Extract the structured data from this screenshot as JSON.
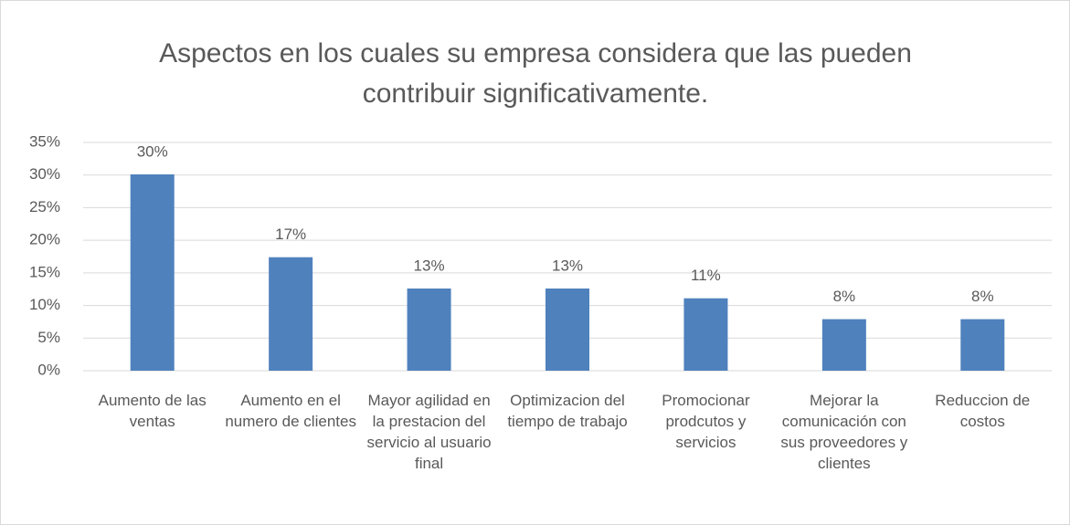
{
  "chart_data": {
    "type": "bar",
    "title": "Aspectos en los cuales su empresa considera que las pueden contribuir significativamente.",
    "categories": [
      "Aumento de las ventas",
      "Aumento en el numero de clientes",
      "Mayor agilidad en la prestacion del servicio al usuario final",
      "Optimizacion del tiempo de trabajo",
      "Promocionar prodcutos y servicios",
      "Mejorar la comunicación con sus proveedores y clientes",
      "Reduccion de costos"
    ],
    "values": [
      30.1,
      17.4,
      12.6,
      12.6,
      11.1,
      7.9,
      7.9
    ],
    "value_labels": [
      "30%",
      "17%",
      "13%",
      "13%",
      "11%",
      "8%",
      "8%"
    ],
    "color": "#4f81bd",
    "ylim": [
      0,
      35
    ],
    "yticks": [
      {
        "value": 0,
        "label": "0%"
      },
      {
        "value": 5,
        "label": "5%"
      },
      {
        "value": 10,
        "label": "10%"
      },
      {
        "value": 15,
        "label": "15%"
      },
      {
        "value": 20,
        "label": "20%"
      },
      {
        "value": 25,
        "label": "25%"
      },
      {
        "value": 30,
        "label": "30%"
      },
      {
        "value": 35,
        "label": "35%"
      }
    ],
    "grid": true
  }
}
